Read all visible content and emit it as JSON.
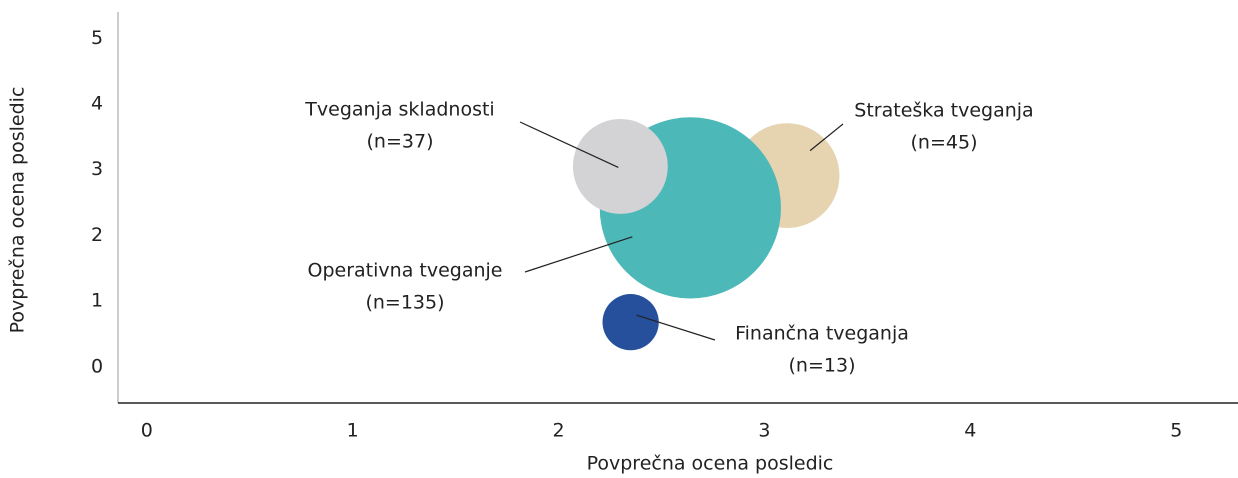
{
  "chart_data": {
    "type": "bubble",
    "xlabel": "Povprečna ocena posledic",
    "ylabel": "Povprečna ocena posledic",
    "xlim": [
      -0.14,
      5.3
    ],
    "ylim": [
      -0.55,
      5.4
    ],
    "xticks": [
      0,
      1,
      2,
      3,
      4,
      5
    ],
    "yticks": [
      0,
      1,
      2,
      3,
      4,
      5
    ],
    "points": [
      {
        "label": "Strateška tveganja",
        "x": 3.11,
        "y": 2.91,
        "n": 45,
        "value_label": "(n=45)",
        "color": "#e6d3b0"
      },
      {
        "label": "Operativna tveganje",
        "x": 2.64,
        "y": 2.42,
        "n": 135,
        "value_label": "(n=135)",
        "color": "#4cb8b8"
      },
      {
        "label": "Tveganja skladnosti",
        "x": 2.3,
        "y": 3.05,
        "n": 37,
        "value_label": "(n=37)",
        "color": "#d3d3d5"
      },
      {
        "label": "Finančna tveganja",
        "x": 2.35,
        "y": 0.68,
        "n": 13,
        "value_label": "(n=13)",
        "color": "#264f9c"
      }
    ]
  }
}
